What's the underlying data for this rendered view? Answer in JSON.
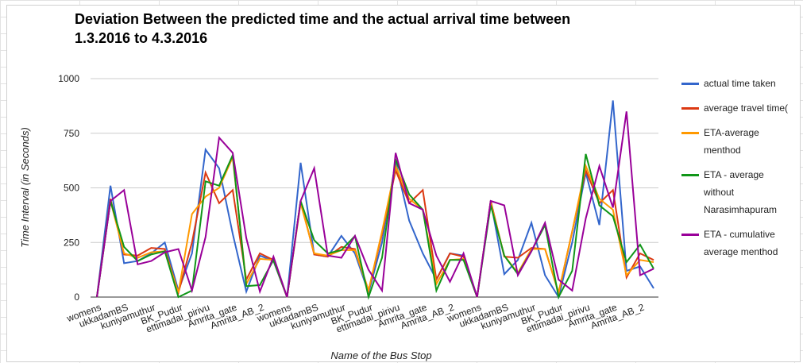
{
  "chart_data": {
    "type": "line",
    "title": "Deviation Between the predicted time and the actual arrival time between 1.3.2016 to 4.3.2016",
    "x_label": "Name of the Bus Stop",
    "y_label": "Time Interval (in Seconds)",
    "categories": [
      "womens",
      null,
      "ukkadamBS",
      null,
      "kuniyamuthur",
      null,
      "BK_Pudur",
      null,
      "ettimadai_pirivu",
      null,
      "Amrita_gate",
      null,
      "Amrita_AB_2",
      null,
      "womens",
      null,
      "ukkadamBS",
      null,
      "kuniyamuthur",
      null,
      "BK_Pudur",
      null,
      "ettimadai_pirivu",
      null,
      "Amrita_gate",
      null,
      "Amrita_AB_2",
      null,
      "womens",
      null,
      "ukkadamBS",
      null,
      "kuniyamuthur",
      null,
      "BK_Pudur",
      null,
      "ettimadai_pirivu",
      null,
      "Amrita_gate",
      null,
      "Amrita_AB_2",
      null
    ],
    "series": [
      {
        "name": "actual time taken",
        "color": "#3366cc",
        "values": [
          0,
          510,
          155,
          165,
          200,
          250,
          30,
          200,
          675,
          590,
          290,
          25,
          190,
          165,
          0,
          615,
          195,
          185,
          280,
          200,
          20,
          250,
          620,
          350,
          200,
          80,
          200,
          190,
          0,
          440,
          105,
          170,
          340,
          100,
          0,
          250,
          570,
          330,
          900,
          120,
          140,
          40
        ]
      },
      {
        "name": "average travel time(",
        "color": "#dc3912",
        "values": [
          0,
          450,
          195,
          190,
          225,
          220,
          20,
          250,
          570,
          430,
          490,
          80,
          200,
          170,
          0,
          440,
          195,
          185,
          230,
          220,
          30,
          290,
          580,
          430,
          490,
          80,
          200,
          185,
          0,
          440,
          185,
          180,
          225,
          220,
          20,
          300,
          580,
          430,
          490,
          90,
          200,
          170
        ]
      },
      {
        "name": "ETA-average menthod",
        "color": "#ff9900",
        "values": [
          0,
          440,
          200,
          180,
          205,
          210,
          20,
          380,
          460,
          500,
          640,
          60,
          175,
          170,
          0,
          430,
          200,
          190,
          215,
          215,
          30,
          300,
          600,
          450,
          400,
          60,
          170,
          175,
          0,
          430,
          190,
          110,
          220,
          220,
          20,
          300,
          600,
          450,
          400,
          100,
          170,
          160
        ]
      },
      {
        "name": "ETA - average without Narasimhapuram",
        "color": "#109618",
        "values": [
          0,
          440,
          230,
          165,
          195,
          210,
          0,
          30,
          530,
          510,
          650,
          50,
          55,
          170,
          0,
          440,
          260,
          200,
          215,
          280,
          0,
          180,
          630,
          470,
          400,
          30,
          170,
          170,
          0,
          420,
          190,
          105,
          210,
          330,
          0,
          120,
          655,
          420,
          370,
          160,
          240,
          130
        ]
      },
      {
        "name": "ETA - cumulative average menthod",
        "color": "#990099",
        "values": [
          0,
          440,
          490,
          150,
          165,
          205,
          220,
          30,
          275,
          730,
          660,
          270,
          25,
          185,
          0,
          440,
          590,
          190,
          180,
          280,
          125,
          30,
          660,
          430,
          400,
          190,
          70,
          200,
          0,
          440,
          420,
          100,
          210,
          340,
          80,
          30,
          360,
          600,
          410,
          850,
          100,
          130
        ]
      }
    ],
    "ylim": [
      0,
      1000
    ],
    "yticks": [
      0,
      250,
      500,
      750,
      1000
    ],
    "grid": true,
    "legend": "right"
  }
}
